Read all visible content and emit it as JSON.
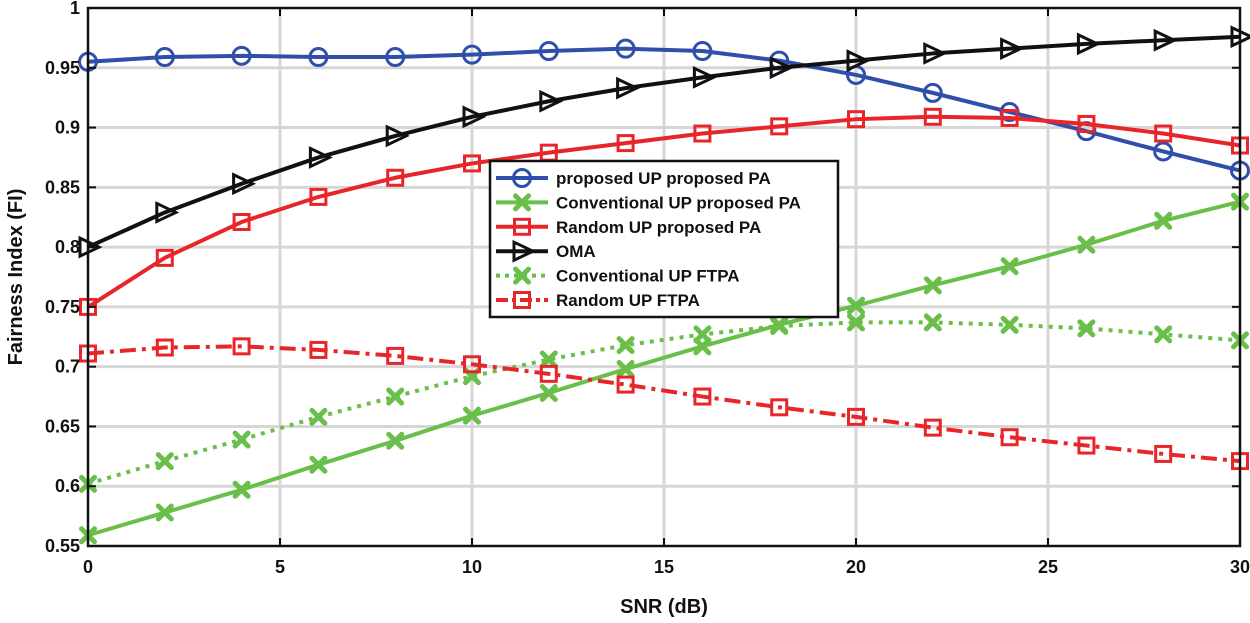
{
  "chart_data": {
    "type": "line",
    "title": "",
    "xlabel": "SNR (dB)",
    "ylabel": "Fairness Index (FI)",
    "xlim": [
      0,
      30
    ],
    "ylim": [
      0.55,
      1
    ],
    "xticks": [
      0,
      5,
      10,
      15,
      20,
      25,
      30
    ],
    "xtick_labels": [
      "0",
      "5",
      "10",
      "15",
      "20",
      "25",
      "30"
    ],
    "yticks": [
      0.55,
      0.6,
      0.65,
      0.7,
      0.75,
      0.8,
      0.85,
      0.9,
      0.95,
      1
    ],
    "ytick_labels": [
      "0.55",
      "0.6",
      "0.65",
      "0.7",
      "0.75",
      "0.8",
      "0.85",
      "0.9",
      "0.95",
      "1"
    ],
    "grid": true,
    "legend_position": "center",
    "x": [
      0,
      2,
      4,
      6,
      8,
      10,
      12,
      14,
      16,
      18,
      20,
      22,
      24,
      26,
      28,
      30
    ],
    "series": [
      {
        "name": "proposed UP proposed PA",
        "color": "#2f4faa",
        "line_style": "solid",
        "marker": "circle",
        "values": [
          0.955,
          0.959,
          0.96,
          0.959,
          0.959,
          0.961,
          0.964,
          0.966,
          0.964,
          0.956,
          0.944,
          0.929,
          0.913,
          0.897,
          0.88,
          0.864
        ]
      },
      {
        "name": "Conventional UP proposed PA",
        "color": "#6abf4b",
        "line_style": "solid",
        "marker": "x",
        "values": [
          0.559,
          0.578,
          0.597,
          0.618,
          0.638,
          0.659,
          0.678,
          0.698,
          0.717,
          0.735,
          0.751,
          0.768,
          0.784,
          0.802,
          0.822,
          0.838
        ]
      },
      {
        "name": "Random UP proposed PA",
        "color": "#e8262a",
        "line_style": "solid",
        "marker": "square",
        "values": [
          0.75,
          0.791,
          0.821,
          0.842,
          0.858,
          0.87,
          0.879,
          0.887,
          0.895,
          0.901,
          0.907,
          0.909,
          0.908,
          0.903,
          0.895,
          0.885
        ]
      },
      {
        "name": "OMA",
        "color": "#111111",
        "line_style": "solid",
        "marker": "triangle-right",
        "values": [
          0.8,
          0.829,
          0.853,
          0.875,
          0.893,
          0.909,
          0.922,
          0.933,
          0.942,
          0.95,
          0.956,
          0.962,
          0.966,
          0.97,
          0.973,
          0.976
        ]
      },
      {
        "name": "Conventional UP FTPA",
        "color": "#6abf4b",
        "line_style": "dotted",
        "marker": "x",
        "values": [
          0.602,
          0.621,
          0.639,
          0.658,
          0.675,
          0.692,
          0.706,
          0.718,
          0.727,
          0.734,
          0.737,
          0.737,
          0.735,
          0.732,
          0.727,
          0.722
        ]
      },
      {
        "name": "Random UP FTPA",
        "color": "#e8262a",
        "line_style": "dashdot",
        "marker": "square",
        "values": [
          0.711,
          0.716,
          0.717,
          0.714,
          0.709,
          0.702,
          0.694,
          0.685,
          0.675,
          0.666,
          0.658,
          0.649,
          0.641,
          0.634,
          0.627,
          0.621
        ]
      }
    ]
  }
}
